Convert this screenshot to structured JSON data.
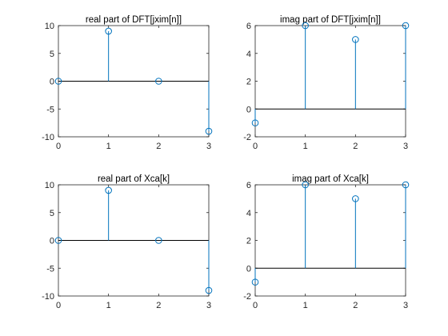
{
  "colors": {
    "stem": "#0072BD",
    "baseline": "#000000",
    "axis": "#262626"
  },
  "chart_data": [
    {
      "type": "stem",
      "title": "real part of DFT[jxim[n]]",
      "x": [
        0,
        1,
        2,
        3
      ],
      "values": [
        0,
        9,
        0,
        -9
      ],
      "xlim": [
        0,
        3
      ],
      "ylim": [
        -10,
        10
      ],
      "xticks": [
        0,
        1,
        2,
        3
      ],
      "yticks": [
        -10,
        -5,
        0,
        5,
        10
      ],
      "xticklabels": [
        "0",
        "1",
        "2",
        "3"
      ],
      "yticklabels": [
        "-10",
        "-5",
        "0",
        "5",
        "10"
      ],
      "grid": false
    },
    {
      "type": "stem",
      "title": "imag part of DFT[jxim[n]]",
      "x": [
        0,
        1,
        2,
        3
      ],
      "values": [
        -1,
        6,
        5,
        6
      ],
      "xlim": [
        0,
        3
      ],
      "ylim": [
        -2,
        6
      ],
      "xticks": [
        0,
        1,
        2,
        3
      ],
      "yticks": [
        -2,
        0,
        2,
        4,
        6
      ],
      "xticklabels": [
        "0",
        "1",
        "2",
        "3"
      ],
      "yticklabels": [
        "-2",
        "0",
        "2",
        "4",
        "6"
      ],
      "grid": false
    },
    {
      "type": "stem",
      "title": "real part of Xca[k]",
      "x": [
        0,
        1,
        2,
        3
      ],
      "values": [
        0,
        9,
        0,
        -9
      ],
      "xlim": [
        0,
        3
      ],
      "ylim": [
        -10,
        10
      ],
      "xticks": [
        0,
        1,
        2,
        3
      ],
      "yticks": [
        -10,
        -5,
        0,
        5,
        10
      ],
      "xticklabels": [
        "0",
        "1",
        "2",
        "3"
      ],
      "yticklabels": [
        "-10",
        "-5",
        "0",
        "5",
        "10"
      ],
      "grid": false
    },
    {
      "type": "stem",
      "title": "imag part of Xca[k]",
      "x": [
        0,
        1,
        2,
        3
      ],
      "values": [
        -1,
        6,
        5,
        6
      ],
      "xlim": [
        0,
        3
      ],
      "ylim": [
        -2,
        6
      ],
      "xticks": [
        0,
        1,
        2,
        3
      ],
      "yticks": [
        -2,
        0,
        2,
        4,
        6
      ],
      "xticklabels": [
        "0",
        "1",
        "2",
        "3"
      ],
      "yticklabels": [
        "-2",
        "0",
        "2",
        "4",
        "6"
      ],
      "grid": false
    }
  ]
}
